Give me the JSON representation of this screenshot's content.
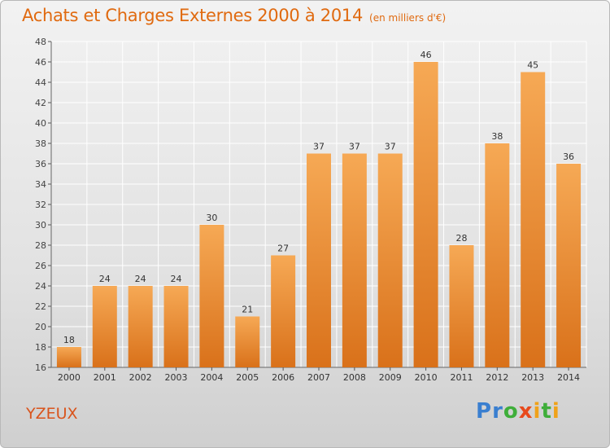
{
  "title": "Achats et Charges Externes 2000 à 2014",
  "subtitle": "(en milliers d'€)",
  "commune": "YZEUX",
  "logo": {
    "text": "Proxiti",
    "letters": [
      {
        "ch": "P",
        "color": "#3a7fd0"
      },
      {
        "ch": "r",
        "color": "#3a7fd0"
      },
      {
        "ch": "o",
        "color": "#3fae3a"
      },
      {
        "ch": "x",
        "color": "#e84a1c"
      },
      {
        "ch": "i",
        "color": "#f0a21a"
      },
      {
        "ch": "t",
        "color": "#3fae3a"
      },
      {
        "ch": "i",
        "color": "#f0a21a"
      }
    ]
  },
  "colors": {
    "bar_top": "#f6a955",
    "bar_bottom": "#d9711a",
    "title": "#e06a10",
    "commune": "#d9541c"
  },
  "chart_data": {
    "type": "bar",
    "categories": [
      "2000",
      "2001",
      "2002",
      "2003",
      "2004",
      "2005",
      "2006",
      "2007",
      "2008",
      "2009",
      "2010",
      "2011",
      "2012",
      "2013",
      "2014"
    ],
    "values": [
      18,
      24,
      24,
      24,
      30,
      21,
      27,
      37,
      37,
      37,
      46,
      28,
      38,
      45,
      36
    ],
    "ylim": [
      16,
      48
    ],
    "ytick_step": 2,
    "grid": true,
    "data_labels": true
  }
}
